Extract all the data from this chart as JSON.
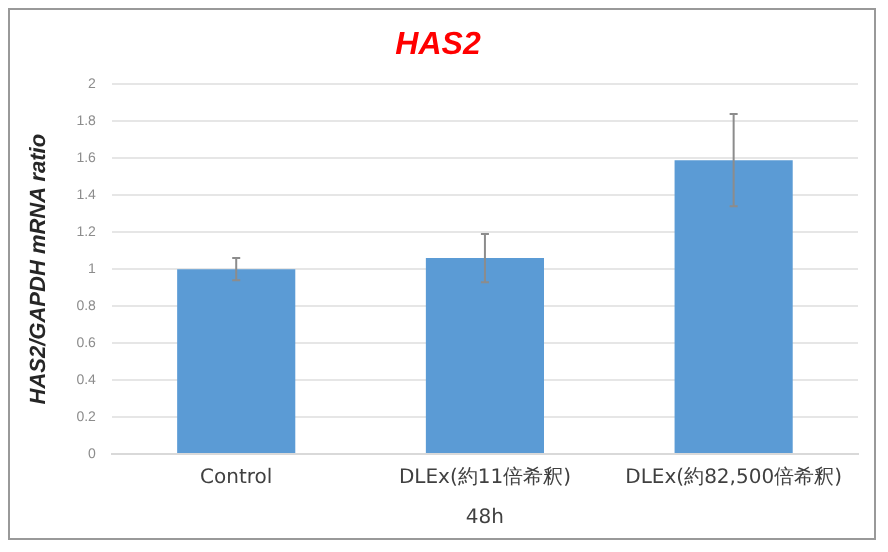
{
  "chart_data": {
    "type": "bar",
    "title": "HAS2",
    "xlabel": "48h",
    "ylabel": "HAS2/GAPDH mRNA ratio",
    "categories": [
      "Control",
      "DLEx(約11倍希釈)",
      "DLEx(約82,500倍希釈)"
    ],
    "values": [
      1.0,
      1.06,
      1.59
    ],
    "errors": [
      0.06,
      0.13,
      0.25
    ],
    "color": "#5b9bd5",
    "ylim": [
      0,
      2
    ],
    "yticks": [
      0,
      0.2,
      0.4,
      0.6,
      0.8,
      1,
      1.2,
      1.4,
      1.6,
      1.8,
      2
    ],
    "grid": "y",
    "legend": false
  }
}
